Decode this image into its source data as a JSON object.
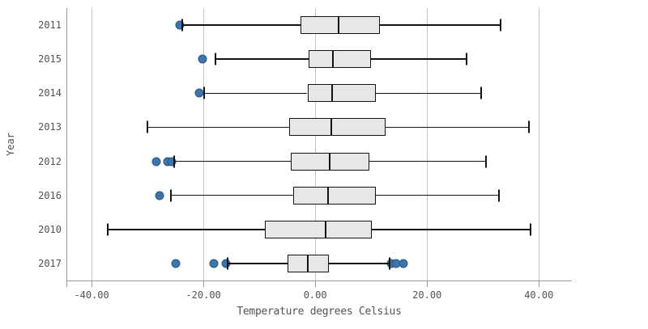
{
  "chart_data": {
    "type": "boxplot",
    "orientation": "horizontal",
    "xlabel": "Temperature degrees Celsius",
    "ylabel": "Year",
    "xlim": [
      -44.5,
      45.9
    ],
    "grid": true,
    "x_ticks": [
      {
        "value": -40,
        "label": "-40.00"
      },
      {
        "value": -20,
        "label": "-20.00"
      },
      {
        "value": 0,
        "label": "0.00"
      },
      {
        "value": 20,
        "label": "20.00"
      },
      {
        "value": 40,
        "label": "40.00"
      }
    ],
    "categories": [
      "2011",
      "2015",
      "2014",
      "2013",
      "2012",
      "2016",
      "2010",
      "2017"
    ],
    "series": [
      {
        "category": "2011",
        "whisker_low": -23.8,
        "q1": -2.7,
        "median": 4.2,
        "q3": 11.6,
        "whisker_high": 33.2,
        "outliers": [
          -24.2
        ]
      },
      {
        "category": "2015",
        "whisker_low": -17.9,
        "q1": -1.2,
        "median": 3.2,
        "q3": 10.0,
        "whisker_high": 27.1,
        "outliers": [
          -20.1
        ]
      },
      {
        "category": "2014",
        "whisker_low": -19.8,
        "q1": -1.4,
        "median": 3.0,
        "q3": 10.9,
        "whisker_high": 29.7,
        "outliers": [
          -20.8
        ]
      },
      {
        "category": "2013",
        "whisker_low": -30.0,
        "q1": -4.6,
        "median": 2.9,
        "q3": 12.6,
        "whisker_high": 38.2,
        "outliers": []
      },
      {
        "category": "2012",
        "whisker_low": -25.2,
        "q1": -4.3,
        "median": 2.6,
        "q3": 9.7,
        "whisker_high": 30.5,
        "outliers": [
          -28.4,
          -26.4,
          -25.7
        ]
      },
      {
        "category": "2016",
        "whisker_low": -25.8,
        "q1": -3.9,
        "median": 2.3,
        "q3": 10.8,
        "whisker_high": 32.9,
        "outliers": [
          -27.8
        ]
      },
      {
        "category": "2010",
        "whisker_low": -37.1,
        "q1": -9.0,
        "median": 1.9,
        "q3": 10.1,
        "whisker_high": 38.5,
        "outliers": []
      },
      {
        "category": "2017",
        "whisker_low": -15.7,
        "q1": -5.0,
        "median": -1.3,
        "q3": 2.4,
        "whisker_high": 13.3,
        "outliers": [
          -24.9,
          -18.1,
          -15.9,
          13.6,
          14.5,
          15.7
        ]
      }
    ],
    "colors": {
      "box_fill": "#e7e7e7",
      "box_border": "#141414",
      "whisker": "#141414",
      "outlier_fill": "#3a76ad",
      "outlier_border": "#27598c",
      "gridline": "#c4c4c4",
      "axis_line": "#9a9a9a",
      "label_text": "#545352"
    }
  }
}
